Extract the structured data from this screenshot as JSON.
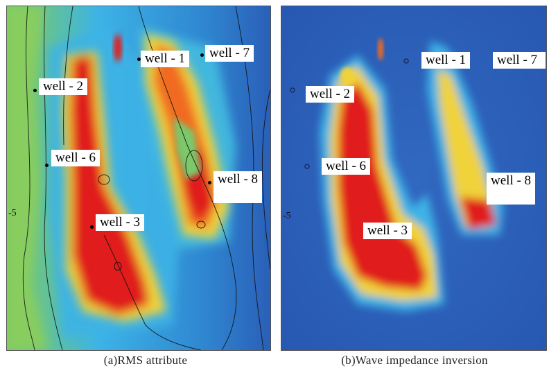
{
  "panel_a": {
    "caption": "(a)RMS attribute",
    "tick_label": "-5",
    "wells": [
      "well - 1",
      "well - 2",
      "well - 3",
      "well - 6",
      "well - 7",
      "well - 8"
    ]
  },
  "panel_b": {
    "caption": "(b)Wave impedance inversion",
    "tick_label": "-5",
    "wells": [
      "well - 1",
      "well - 2",
      "well - 3",
      "well - 6",
      "well - 7",
      "well - 8"
    ]
  },
  "colors": {
    "low": "#2a5fb8",
    "mid_low": "#3db3e6",
    "mid": "#7cc86a",
    "mid_high": "#f0d23a",
    "high": "#e01e1e"
  }
}
